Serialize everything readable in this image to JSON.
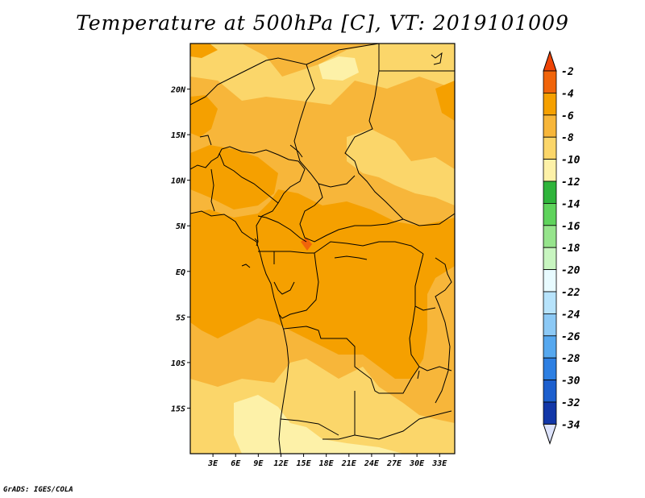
{
  "title": "Temperature at 500hPa [C], VT: 2019101009",
  "credit": "GrADS: IGES/COLA",
  "map": {
    "variable": "Temperature at 500hPa",
    "units": "C",
    "valid_time": "2019101009",
    "lon_range": [
      0,
      35
    ],
    "lat_range": [
      -20,
      25
    ],
    "lat_ticks": [
      "20N",
      "15N",
      "10N",
      "5N",
      "EQ",
      "5S",
      "10S",
      "15S"
    ],
    "lon_ticks": [
      "3E",
      "6E",
      "9E",
      "12E",
      "15E",
      "18E",
      "21E",
      "24E",
      "27E",
      "30E",
      "33E"
    ]
  },
  "colorbar": {
    "labels": [
      "-2",
      "-4",
      "-6",
      "-8",
      "-10",
      "-12",
      "-14",
      "-16",
      "-18",
      "-20",
      "-22",
      "-24",
      "-26",
      "-28",
      "-30",
      "-32",
      "-34"
    ],
    "colors": [
      "#f0640a",
      "#f5a000",
      "#f7b63a",
      "#fbd66a",
      "#fdf1a8",
      "#2fb43b",
      "#5fd35c",
      "#96e48c",
      "#c8f5c0",
      "#e8fbff",
      "#b7e3fb",
      "#8cc9f5",
      "#56a8ef",
      "#2d7fe2",
      "#1c5fce",
      "#1237a8",
      "#0a1670"
    ],
    "top_color": "#ee4406",
    "bottom_color": "#dde3fb"
  },
  "field_colors": {
    "c4_6": "#f5a000",
    "c6_8": "#f7b63a",
    "c8_10": "#fbd66a",
    "c10_12": "#fdf1a8",
    "c2_4": "#f0640a"
  }
}
